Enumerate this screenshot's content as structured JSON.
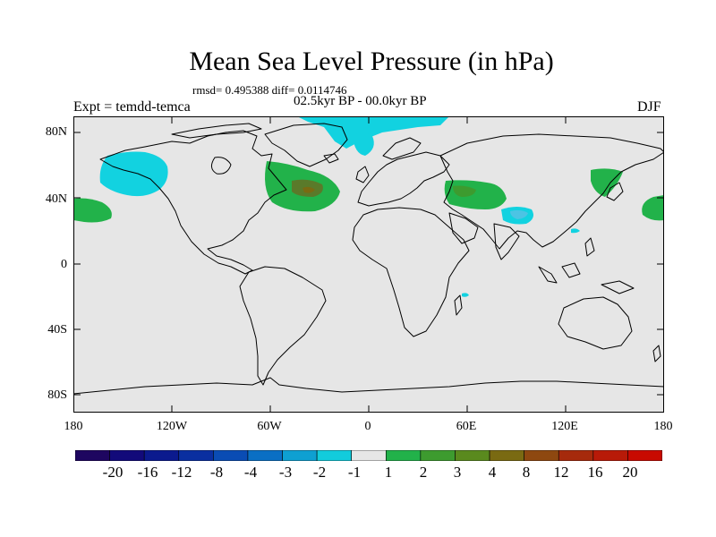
{
  "title": "Mean Sea Level Pressure (in hPa)",
  "stats": "rmsd= 0.495388 diff= 0.0114746",
  "period": "02.5kyr BP - 00.0kyr BP",
  "experiment": "Expt = temdd-temca",
  "season": "DJF",
  "axes": {
    "lat_labels": [
      "80N",
      "40N",
      "0",
      "40S",
      "80S"
    ],
    "lon_labels": [
      "180",
      "120W",
      "60W",
      "0",
      "60E",
      "120E",
      "180"
    ]
  },
  "colorbar": {
    "labels": [
      "-20",
      "-16",
      "-12",
      "-8",
      "-4",
      "-3",
      "-2",
      "-1",
      "1",
      "2",
      "3",
      "4",
      "8",
      "12",
      "16",
      "20"
    ],
    "colors": [
      "#1e0660",
      "#120a7a",
      "#0b1a8e",
      "#0a2fa0",
      "#0a4cb4",
      "#0a6fc4",
      "#0ea0d2",
      "#12ccdc",
      "#e6e6e6",
      "#22b24a",
      "#3d9b2f",
      "#5a8a1e",
      "#7a6a12",
      "#8e4810",
      "#a62a0c",
      "#b81a08",
      "#c80a00"
    ]
  },
  "colors": {
    "ocean_land": "#e6e6e6",
    "cyan": "#12d2e0",
    "light_cyan": "#4cc4e4",
    "green": "#22b24a",
    "dark_green": "#3d9b2f",
    "brown_green": "#5a7a2a",
    "coast": "#000000"
  }
}
